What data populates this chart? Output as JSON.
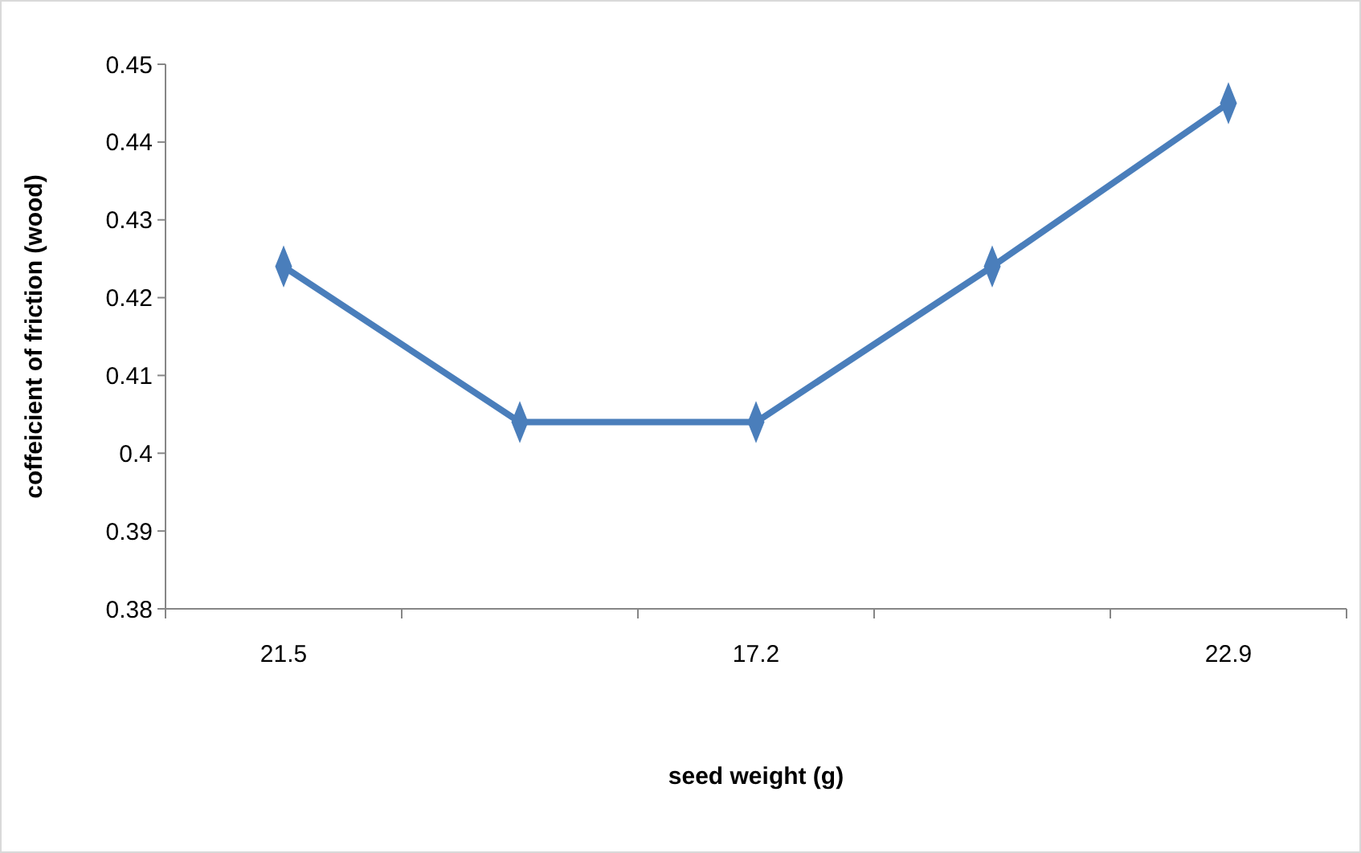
{
  "chart_data": {
    "type": "line",
    "xlabel": "seed weight (g)",
    "ylabel": "coffeicient of friction (wood)",
    "categories": [
      "21.5",
      null,
      "17.2",
      null,
      "22.9"
    ],
    "series": [
      {
        "color": "#4a7ebb",
        "values": [
          0.424,
          0.404,
          0.404,
          0.424,
          0.445
        ]
      }
    ],
    "ylim": [
      0.38,
      0.45
    ],
    "yticks": [
      0.38,
      0.39,
      0.4,
      0.41,
      0.42,
      0.43,
      0.44,
      0.45
    ],
    "grid": false,
    "marker": "diamond",
    "line_style": "solid"
  }
}
